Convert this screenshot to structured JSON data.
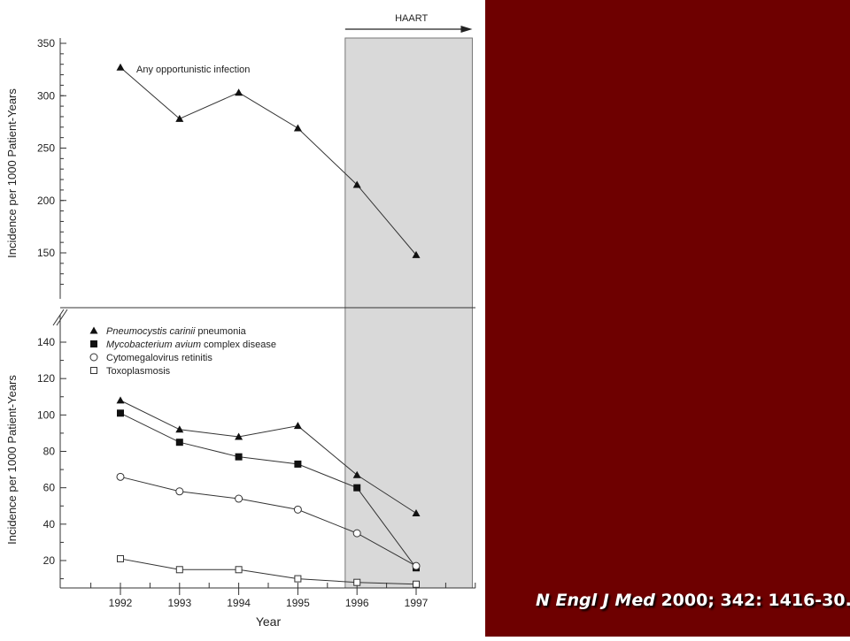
{
  "chart_data": [
    {
      "type": "line",
      "panel": "top",
      "ylabel": "Incidence per 1000 Patient-Years",
      "ylim": [
        100,
        350
      ],
      "yticks": [
        150,
        200,
        250,
        300,
        350
      ],
      "x": [
        1992,
        1993,
        1994,
        1995,
        1996,
        1997
      ],
      "series": [
        {
          "name": "Any opportunistic infection",
          "marker": "filled-triangle",
          "values": [
            327,
            278,
            303,
            269,
            215,
            148
          ]
        }
      ],
      "shaded_region": {
        "label": "HAART",
        "x_from": 1995.8,
        "x_to": 1997.95
      }
    },
    {
      "type": "line",
      "panel": "bottom",
      "xlabel": "Year",
      "ylabel": "Incidence per 1000 Patient-Years",
      "ylim": [
        5,
        150
      ],
      "yticks": [
        20,
        40,
        60,
        80,
        100,
        120,
        140
      ],
      "x": [
        1992,
        1993,
        1994,
        1995,
        1996,
        1997
      ],
      "series": [
        {
          "name_italic": "Pneumocystis carinii",
          "name_rest": " pneumonia",
          "marker": "filled-triangle",
          "values": [
            108,
            92,
            88,
            94,
            67,
            46
          ]
        },
        {
          "name_italic": "Mycobacterium avium",
          "name_rest": " complex disease",
          "marker": "filled-square",
          "values": [
            101,
            85,
            77,
            73,
            60,
            16
          ]
        },
        {
          "name_italic": "",
          "name_rest": "Cytomegalovirus retinitis",
          "marker": "open-circle",
          "values": [
            66,
            58,
            54,
            48,
            35,
            17
          ]
        },
        {
          "name_italic": "",
          "name_rest": "Toxoplasmosis",
          "marker": "open-square",
          "values": [
            21,
            15,
            15,
            10,
            8,
            7
          ]
        }
      ]
    }
  ],
  "citation": {
    "journal": "N Engl J Med",
    "rest": " 2000; 342: 1416-30."
  }
}
